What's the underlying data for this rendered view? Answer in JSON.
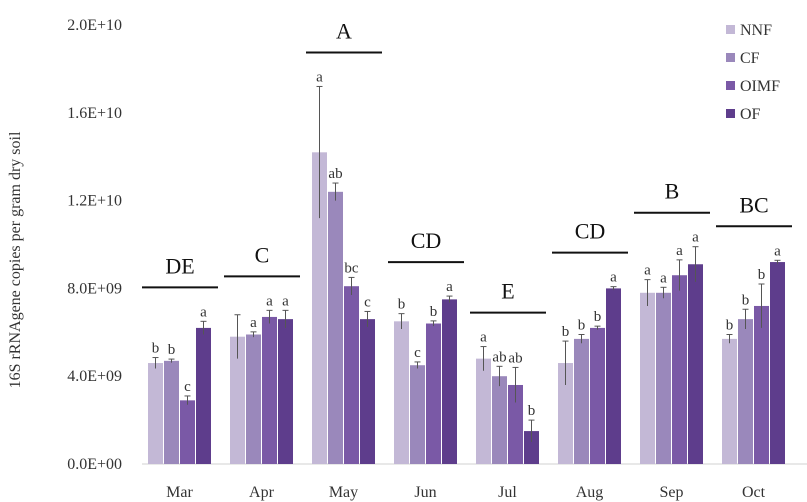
{
  "chart_data": {
    "type": "bar",
    "ylabel": "16S rRNAgene copies per gram dry soil",
    "ylim": [
      0,
      20000000000
    ],
    "yticks": [
      "0.0E+00",
      "4.0E+09",
      "8.0E+09",
      "1.2E+10",
      "1.6E+10",
      "2.0E+10"
    ],
    "ytick_values": [
      0,
      4000000000,
      8000000000,
      12000000000,
      16000000000,
      20000000000
    ],
    "categories": [
      "Mar",
      "Apr",
      "May",
      "Jun",
      "Jul",
      "Aug",
      "Sep",
      "Oct"
    ],
    "legend_position": "top-right",
    "grid": false,
    "series": [
      {
        "name": "NNF",
        "color": "#c3b8d6",
        "values": [
          4600000000,
          5800000000,
          14200000000,
          6500000000,
          4800000000,
          4600000000,
          7800000000,
          5700000000
        ],
        "errors": [
          250000000,
          1000000000,
          3000000000,
          350000000,
          550000000,
          1000000000,
          600000000,
          200000000
        ],
        "letters": [
          "b",
          "",
          "a",
          "b",
          "a",
          "b",
          "a",
          "b"
        ]
      },
      {
        "name": "CF",
        "color": "#9a88bb",
        "values": [
          4700000000,
          5900000000,
          12400000000,
          4500000000,
          4000000000,
          5700000000,
          7800000000,
          6600000000
        ],
        "errors": [
          80000000,
          120000000,
          400000000,
          150000000,
          450000000,
          200000000,
          250000000,
          450000000
        ],
        "letters": [
          "b",
          "a",
          "ab",
          "c",
          "ab",
          "b",
          "a",
          "b"
        ]
      },
      {
        "name": "OIMF",
        "color": "#7a59a6",
        "values": [
          2900000000,
          6700000000,
          8100000000,
          6400000000,
          3600000000,
          6200000000,
          8600000000,
          7200000000
        ],
        "errors": [
          200000000,
          300000000,
          400000000,
          120000000,
          800000000,
          80000000,
          700000000,
          1000000000
        ],
        "letters": [
          "c",
          "a",
          "bc",
          "b",
          "ab",
          "b",
          "a",
          "b"
        ]
      },
      {
        "name": "OF",
        "color": "#5e3d8c",
        "values": [
          6200000000,
          6600000000,
          6600000000,
          7500000000,
          1500000000,
          8000000000,
          9100000000,
          9200000000
        ],
        "errors": [
          300000000,
          400000000,
          350000000,
          150000000,
          500000000,
          80000000,
          800000000,
          80000000
        ],
        "letters": [
          "a",
          "a",
          "c",
          "a",
          "b",
          "a",
          "a",
          "a"
        ]
      }
    ],
    "group_letters": [
      "DE",
      "C",
      "A",
      "CD",
      "E",
      "CD",
      "B",
      "BC"
    ]
  }
}
